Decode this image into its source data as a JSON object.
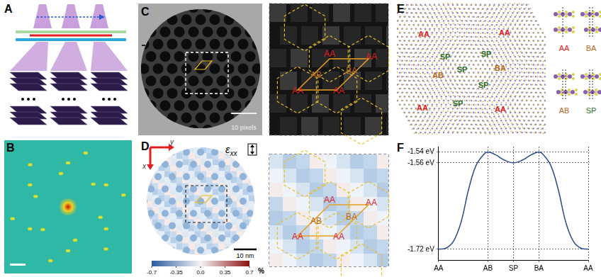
{
  "panels": {
    "A": {
      "label": "A"
    },
    "B": {
      "label": "B"
    },
    "C": {
      "label": "C",
      "scale_bar": "10 pixels",
      "zoom_labels": [
        "AA",
        "AA",
        "AB",
        "BA",
        "AA",
        "AA"
      ]
    },
    "D": {
      "label": "D",
      "axes": [
        "x",
        "y"
      ],
      "component": "ε",
      "subscript": "xx",
      "scale_bar": "10 nm",
      "colorbar": {
        "range": [
          -0.7,
          0.7
        ],
        "ticks": [
          -0.7,
          -0.35,
          {
            "value": 0,
            "label": "0.0"
          },
          0.35,
          0.7
        ],
        "unit": "%"
      },
      "zoom_labels": [
        "AA",
        "AA",
        "AB",
        "BA",
        "AA",
        "AA"
      ]
    },
    "E": {
      "label": "E",
      "map_labels": [
        "AA",
        "AA",
        "SP",
        "SP",
        "BA",
        "AB",
        "SP",
        "SP",
        "AA",
        "SP",
        "AA"
      ],
      "stacking_labels": [
        "AA",
        "BA",
        "AB",
        "SP"
      ]
    },
    "F": {
      "label": "F"
    }
  },
  "chart_data": {
    "type": "line",
    "grid": true,
    "x": [
      0,
      0.05,
      0.1,
      0.15,
      0.2,
      0.25,
      0.3,
      0.33,
      0.38,
      0.44,
      0.5,
      0.56,
      0.62,
      0.67,
      0.7,
      0.75,
      0.8,
      0.85,
      0.9,
      0.95,
      1
    ],
    "series": [
      {
        "color": "#2a4a8a",
        "marker": "none",
        "line_style": "solid",
        "values": [
          -1.72,
          -1.718,
          -1.705,
          -1.67,
          -1.61,
          -1.565,
          -1.545,
          -1.54,
          -1.545,
          -1.555,
          -1.56,
          -1.555,
          -1.545,
          -1.54,
          -1.545,
          -1.565,
          -1.61,
          -1.67,
          -1.705,
          -1.718,
          -1.72
        ]
      }
    ],
    "xlim": [
      0,
      1
    ],
    "xticks": [
      {
        "value": 0,
        "label": "AA"
      },
      {
        "value": 0.33,
        "label": "AB"
      },
      {
        "value": 0.5,
        "label": "SP"
      },
      {
        "value": 0.67,
        "label": "BA"
      },
      {
        "value": 1,
        "label": "AA"
      }
    ],
    "ylim": [
      -1.74,
      -1.53
    ],
    "yticks": [
      {
        "value": -1.54,
        "label": "-1.54 eV"
      },
      {
        "value": -1.56,
        "label": "-1.56 eV"
      },
      {
        "value": -1.72,
        "label": "-1.72 eV"
      }
    ]
  }
}
